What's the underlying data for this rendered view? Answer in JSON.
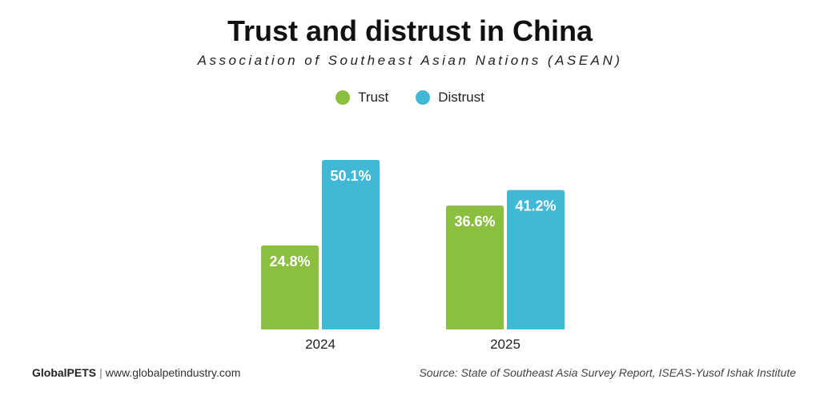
{
  "chart_data": {
    "type": "bar",
    "title": "Trust and distrust in China",
    "subtitle": "Association of Southeast Asian Nations (ASEAN)",
    "categories": [
      "2024",
      "2025"
    ],
    "series": [
      {
        "name": "Trust",
        "values": [
          24.8,
          36.6
        ],
        "labels": [
          "24.8%",
          "36.6%"
        ],
        "color": "#8bbf3f"
      },
      {
        "name": "Distrust",
        "values": [
          50.1,
          41.2
        ],
        "labels": [
          "50.1%",
          "41.2%"
        ],
        "color": "#41b8d5"
      }
    ],
    "xlabel": "",
    "ylabel": "",
    "ylim": [
      0,
      50.1
    ],
    "legend_position": "top-center",
    "grid": false
  },
  "footer": {
    "brand": "GlobalPETS",
    "separator": "|",
    "website": "www.globalpetindustry.com",
    "source": "Source: State of Southeast Asia Survey Report, ISEAS-Yusof Ishak Institute"
  }
}
